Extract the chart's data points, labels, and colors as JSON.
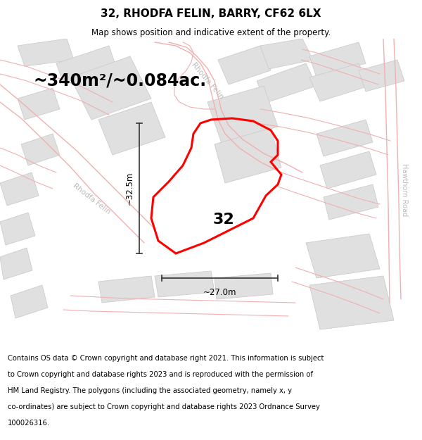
{
  "title": "32, RHODFA FELIN, BARRY, CF62 6LX",
  "subtitle": "Map shows position and indicative extent of the property.",
  "area_text": "~340m²/~0.084ac.",
  "width_label": "~27.0m",
  "height_label": "~32.5m",
  "plot_number": "32",
  "footer_lines": [
    "Contains OS data © Crown copyright and database right 2021. This information is subject",
    "to Crown copyright and database rights 2023 and is reproduced with the permission of",
    "HM Land Registry. The polygons (including the associated geometry, namely x, y",
    "co-ordinates) are subject to Crown copyright and database rights 2023 Ordnance Survey",
    "100026316."
  ],
  "map_bg": "#efefef",
  "plot_color": "#ff0000",
  "road_color": "#f0b0b0",
  "road_lw": 1.0,
  "building_fill": "#e0e0e0",
  "building_edge": "#cccccc",
  "title_fontsize": 11,
  "subtitle_fontsize": 8.5,
  "area_fontsize": 17,
  "footer_fontsize": 7.2,
  "plot_linewidth": 2.2,
  "dim_color": "#333333",
  "road_label_color": "#bbbbbb"
}
